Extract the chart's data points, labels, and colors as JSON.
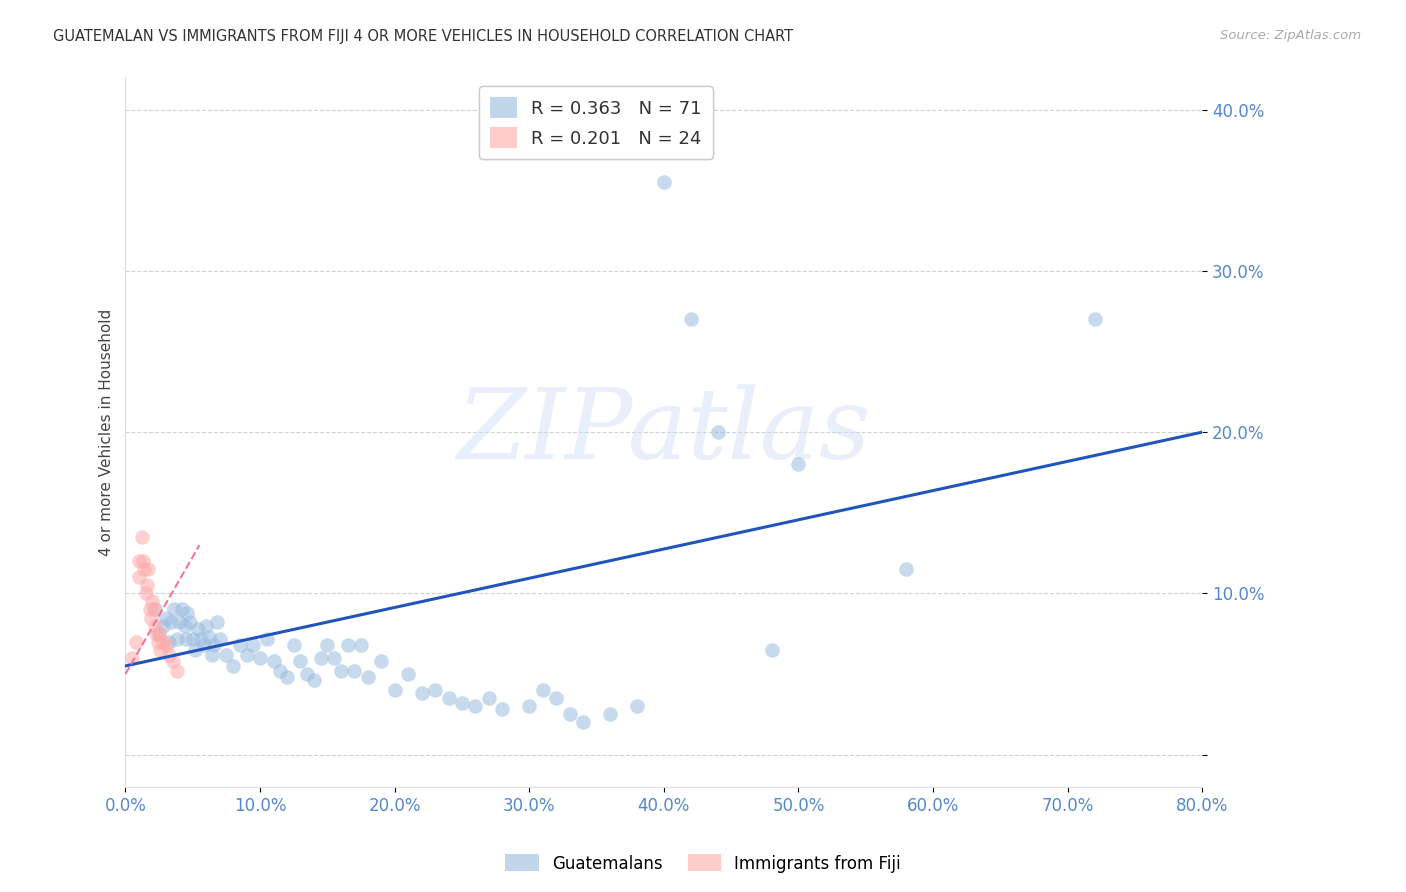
{
  "title": "GUATEMALAN VS IMMIGRANTS FROM FIJI 4 OR MORE VEHICLES IN HOUSEHOLD CORRELATION CHART",
  "source": "Source: ZipAtlas.com",
  "ylabel_label": "4 or more Vehicles in Household",
  "legend_label1": "Guatemalans",
  "legend_label2": "Immigrants from Fiji",
  "R1": 0.363,
  "N1": 71,
  "R2": 0.201,
  "N2": 24,
  "xlim": [
    0.0,
    0.8
  ],
  "ylim": [
    -0.02,
    0.42
  ],
  "xticks": [
    0.0,
    0.1,
    0.2,
    0.3,
    0.4,
    0.5,
    0.6,
    0.7,
    0.8
  ],
  "yticks": [
    0.0,
    0.1,
    0.2,
    0.3,
    0.4
  ],
  "color_blue": "#99BBDD",
  "color_pink": "#FFAAAA",
  "color_line_blue": "#2255BB",
  "color_line_pink": "#EE7799",
  "color_axis_text": "#5588CC",
  "blue_x": [
    0.022,
    0.025,
    0.028,
    0.03,
    0.032,
    0.034,
    0.036,
    0.038,
    0.04,
    0.042,
    0.044,
    0.045,
    0.046,
    0.048,
    0.05,
    0.052,
    0.054,
    0.056,
    0.058,
    0.06,
    0.062,
    0.064,
    0.066,
    0.068,
    0.07,
    0.075,
    0.08,
    0.085,
    0.09,
    0.095,
    0.1,
    0.105,
    0.11,
    0.115,
    0.12,
    0.125,
    0.13,
    0.135,
    0.14,
    0.145,
    0.15,
    0.155,
    0.16,
    0.165,
    0.17,
    0.175,
    0.18,
    0.19,
    0.2,
    0.21,
    0.22,
    0.23,
    0.24,
    0.25,
    0.26,
    0.27,
    0.28,
    0.3,
    0.31,
    0.32,
    0.33,
    0.34,
    0.36,
    0.38,
    0.4,
    0.42,
    0.44,
    0.48,
    0.5,
    0.58,
    0.72
  ],
  "blue_y": [
    0.09,
    0.075,
    0.08,
    0.085,
    0.07,
    0.082,
    0.09,
    0.072,
    0.082,
    0.09,
    0.08,
    0.072,
    0.088,
    0.082,
    0.072,
    0.065,
    0.078,
    0.072,
    0.068,
    0.08,
    0.073,
    0.062,
    0.068,
    0.082,
    0.072,
    0.062,
    0.055,
    0.068,
    0.062,
    0.068,
    0.06,
    0.072,
    0.058,
    0.052,
    0.048,
    0.068,
    0.058,
    0.05,
    0.046,
    0.06,
    0.068,
    0.06,
    0.052,
    0.068,
    0.052,
    0.068,
    0.048,
    0.058,
    0.04,
    0.05,
    0.038,
    0.04,
    0.035,
    0.032,
    0.03,
    0.035,
    0.028,
    0.03,
    0.04,
    0.035,
    0.025,
    0.02,
    0.025,
    0.03,
    0.355,
    0.27,
    0.2,
    0.065,
    0.18,
    0.115,
    0.27
  ],
  "pink_x": [
    0.005,
    0.008,
    0.01,
    0.01,
    0.012,
    0.013,
    0.014,
    0.015,
    0.016,
    0.017,
    0.018,
    0.019,
    0.02,
    0.021,
    0.022,
    0.023,
    0.024,
    0.025,
    0.026,
    0.028,
    0.03,
    0.032,
    0.035,
    0.038
  ],
  "pink_y": [
    0.06,
    0.07,
    0.11,
    0.12,
    0.135,
    0.12,
    0.115,
    0.1,
    0.105,
    0.115,
    0.09,
    0.085,
    0.095,
    0.09,
    0.08,
    0.075,
    0.07,
    0.075,
    0.065,
    0.07,
    0.068,
    0.062,
    0.058,
    0.052
  ]
}
